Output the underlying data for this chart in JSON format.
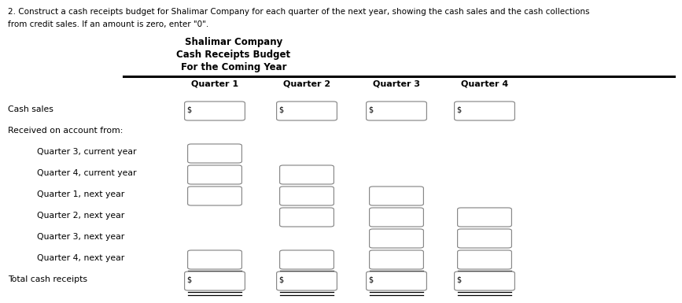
{
  "title_line1": "Shalimar Company",
  "title_line2": "Cash Receipts Budget",
  "title_line3": "For the Coming Year",
  "instruction_line1": "2. Construct a cash receipts budget for Shalimar Company for each quarter of the next year, showing the cash sales and the cash collections",
  "instruction_line2": "from credit sales. If an amount is zero, enter \"0\".",
  "quarters": [
    "Quarter 1",
    "Quarter 2",
    "Quarter 3",
    "Quarter 4"
  ],
  "row_labels": [
    "Cash sales",
    "Received on account from:",
    "Quarter 3, current year",
    "Quarter 4, current year",
    "Quarter 1, next year",
    "Quarter 2, next year",
    "Quarter 3, next year",
    "Quarter 4, next year",
    "Total cash receipts"
  ],
  "row_indent": [
    0,
    0,
    1,
    1,
    1,
    1,
    1,
    1,
    0
  ],
  "show_dollar_sign": [
    true,
    false,
    false,
    false,
    false,
    false,
    false,
    false,
    true
  ],
  "is_header": [
    false,
    true,
    false,
    false,
    false,
    false,
    false,
    false,
    false
  ],
  "is_total": [
    false,
    false,
    false,
    false,
    false,
    false,
    false,
    false,
    true
  ],
  "box_pattern": [
    [
      true,
      true,
      true,
      true
    ],
    [
      false,
      false,
      false,
      false
    ],
    [
      true,
      false,
      false,
      false
    ],
    [
      true,
      true,
      false,
      false
    ],
    [
      true,
      true,
      true,
      false
    ],
    [
      false,
      true,
      true,
      true
    ],
    [
      false,
      false,
      true,
      true
    ],
    [
      true,
      true,
      true,
      true
    ],
    [
      true,
      true,
      true,
      true
    ]
  ],
  "bg_color": "#ffffff",
  "text_color": "#000000",
  "title_color": "#000000",
  "box_color": "#808080"
}
